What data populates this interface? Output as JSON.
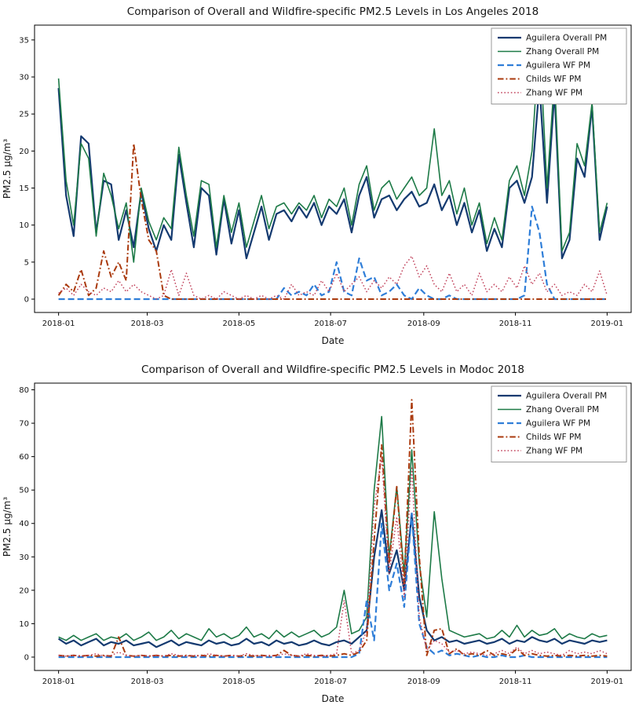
{
  "page": {
    "background": "#ffffff"
  },
  "chart_data": [
    {
      "type": "line",
      "title": "Comparison of Overall and Wildfire-specific PM2.5 Levels in Los Angeles 2018",
      "xlabel": "Date",
      "ylabel": "PM2.5 µg/m³",
      "ylim": [
        -1.8,
        37
      ],
      "yticks": [
        0,
        5,
        10,
        15,
        20,
        25,
        30,
        35
      ],
      "xlim_days": [
        -16,
        381
      ],
      "xticks": [
        {
          "label": "2018-01",
          "day": 0
        },
        {
          "label": "2018-03",
          "day": 59
        },
        {
          "label": "2018-05",
          "day": 120
        },
        {
          "label": "2018-07",
          "day": 181
        },
        {
          "label": "2018-09",
          "day": 243
        },
        {
          "label": "2018-11",
          "day": 304
        },
        {
          "label": "2019-01",
          "day": 365
        }
      ],
      "x_start_day": 0,
      "x_step_days": 5,
      "grid": false,
      "legend_position": "upper right",
      "series": [
        {
          "name": "Aguilera Overall PM",
          "color": "#143a70",
          "style": "solid",
          "width": 2.2,
          "values": [
            28.5,
            14,
            8.5,
            22,
            21,
            9,
            16,
            15.5,
            8,
            12,
            7,
            14.5,
            9.5,
            6.5,
            10,
            8,
            19.5,
            13,
            7,
            15,
            14,
            6,
            13.5,
            7.5,
            12,
            5.5,
            9,
            12.5,
            8,
            11.5,
            12,
            10.5,
            12.5,
            11,
            13,
            10,
            12.5,
            11.5,
            13.5,
            9,
            14,
            16.5,
            11,
            13.5,
            14,
            12,
            13.5,
            14.5,
            12.5,
            13,
            15.5,
            12,
            14,
            10,
            13,
            9,
            12,
            6.5,
            9.5,
            7,
            15,
            16,
            13,
            16.5,
            29,
            13,
            28,
            5.5,
            8,
            19,
            16.5,
            26,
            8,
            12.5
          ]
        },
        {
          "name": "Zhang Overall PM",
          "color": "#1d7a47",
          "style": "solid",
          "width": 1.6,
          "values": [
            29.8,
            16,
            10,
            21,
            19,
            8.5,
            17,
            14,
            9.5,
            13,
            5,
            15,
            10.5,
            8,
            11,
            9.5,
            20.5,
            14,
            8.5,
            16,
            15.5,
            7,
            14,
            9,
            13,
            7,
            10.5,
            14,
            9.5,
            12.5,
            13,
            11.5,
            13,
            12,
            14,
            11,
            13.5,
            12.5,
            15,
            10,
            15.5,
            18,
            12,
            15,
            16,
            13.5,
            15,
            16.5,
            14,
            15,
            23,
            14,
            16,
            11.5,
            15,
            10,
            13,
            7.5,
            11,
            8,
            16,
            18,
            14,
            20,
            35.5,
            15,
            30,
            6.5,
            9,
            21,
            18,
            26.5,
            9,
            13
          ]
        },
        {
          "name": "Aguilera WF PM",
          "color": "#2f7ed8",
          "style": "dashed",
          "width": 2.2,
          "values": [
            0,
            0,
            0,
            0,
            0,
            0,
            0,
            0,
            0,
            0,
            0,
            0,
            0,
            0,
            0,
            0,
            0,
            0,
            0,
            0,
            0,
            0,
            0,
            0,
            0,
            0,
            0,
            0,
            0,
            0,
            1.5,
            0.5,
            1,
            0.5,
            2,
            0.5,
            1,
            5,
            1,
            0.5,
            5.5,
            2.5,
            3,
            0.5,
            1,
            2,
            0.5,
            0,
            1.5,
            0.5,
            0,
            0,
            0.5,
            0,
            0,
            0,
            0,
            0,
            0,
            0,
            0,
            0,
            0.5,
            12.5,
            9,
            2,
            0,
            0,
            0,
            0,
            0,
            0,
            0,
            0
          ]
        },
        {
          "name": "Childs WF PM",
          "color": "#aa3a0e",
          "style": "dashdot",
          "width": 2,
          "values": [
            0.5,
            2,
            1,
            4,
            0.5,
            1.5,
            6.5,
            3,
            5,
            2.5,
            21,
            13.5,
            8,
            6.5,
            0.5,
            0,
            0,
            0,
            0,
            0,
            0,
            0,
            0,
            0,
            0,
            0,
            0,
            0,
            0,
            0,
            0,
            0,
            0,
            0,
            0,
            0,
            0,
            0,
            0,
            0,
            0,
            0,
            0,
            0,
            0,
            0,
            0,
            0,
            0,
            0,
            0,
            0,
            0,
            0,
            0,
            0,
            0,
            0,
            0,
            0,
            0,
            0,
            0,
            0,
            0,
            0,
            0,
            0,
            0,
            0,
            0,
            0,
            0,
            0
          ]
        },
        {
          "name": "Zhang WF PM",
          "color": "#c2455e",
          "style": "dotted",
          "width": 1.5,
          "values": [
            0.8,
            1.5,
            0.5,
            2,
            1,
            0.5,
            1.5,
            1,
            2.5,
            1,
            2,
            1,
            0.5,
            0,
            0.5,
            4,
            0.5,
            3.5,
            0.5,
            0,
            0.5,
            0,
            1,
            0.5,
            0,
            0.5,
            0,
            0.5,
            0,
            0.5,
            0,
            2,
            0.5,
            1,
            0.5,
            2.5,
            1,
            3.5,
            1,
            2,
            3,
            1,
            2.5,
            1.5,
            3,
            2,
            4.5,
            5.8,
            3,
            4.5,
            2,
            1,
            3.5,
            1,
            2,
            0.5,
            3.5,
            1,
            2,
            1,
            3,
            1.5,
            4.5,
            2,
            3.5,
            1,
            2,
            0.5,
            1,
            0.5,
            2,
            1,
            3.8,
            0.5
          ]
        }
      ]
    },
    {
      "type": "line",
      "title": "Comparison of Overall and Wildfire-specific PM2.5 Levels in Modoc 2018",
      "xlabel": "Date",
      "ylabel": "PM2.5 µg/m³",
      "ylim": [
        -4,
        82
      ],
      "yticks": [
        0,
        10,
        20,
        30,
        40,
        50,
        60,
        70,
        80
      ],
      "xlim_days": [
        -16,
        381
      ],
      "xticks": [
        {
          "label": "2018-01",
          "day": 0
        },
        {
          "label": "2018-03",
          "day": 59
        },
        {
          "label": "2018-05",
          "day": 120
        },
        {
          "label": "2018-07",
          "day": 181
        },
        {
          "label": "2018-09",
          "day": 243
        },
        {
          "label": "2018-11",
          "day": 304
        },
        {
          "label": "2019-01",
          "day": 365
        }
      ],
      "x_start_day": 0,
      "x_step_days": 5,
      "grid": false,
      "legend_position": "upper right",
      "series": [
        {
          "name": "Aguilera Overall PM",
          "color": "#143a70",
          "style": "solid",
          "width": 2.2,
          "values": [
            5.5,
            4,
            5,
            3.5,
            4.5,
            5.5,
            3.5,
            4.5,
            4,
            5,
            3.5,
            4,
            4.5,
            3,
            4,
            5,
            3.5,
            4.5,
            4,
            3.5,
            5,
            4,
            4.5,
            3.5,
            4,
            5.5,
            4,
            4.5,
            3.5,
            5,
            4,
            4.5,
            3.5,
            4,
            5,
            4,
            3.5,
            4.5,
            5,
            4,
            6,
            8,
            30,
            44,
            25,
            32,
            20,
            43,
            18,
            8,
            5,
            6,
            4.5,
            5,
            4,
            4.5,
            5,
            4,
            4.5,
            5.5,
            4,
            5,
            4.5,
            6,
            5,
            4.5,
            5.5,
            4,
            5,
            4.5,
            4,
            5,
            4.5,
            5
          ]
        },
        {
          "name": "Zhang Overall PM",
          "color": "#1d7a47",
          "style": "solid",
          "width": 1.6,
          "values": [
            6,
            5,
            6.5,
            5,
            6,
            7,
            5,
            6,
            5.5,
            7,
            5,
            6,
            7.5,
            5,
            6,
            8,
            5.5,
            7,
            6,
            5,
            8.5,
            6,
            7,
            5.5,
            6.5,
            9,
            6,
            7,
            5.5,
            8,
            6,
            7.5,
            6,
            7,
            8,
            6,
            7,
            9,
            20,
            7,
            8,
            12,
            50,
            72,
            30,
            51,
            25,
            62,
            28,
            12,
            43.5,
            23.5,
            8,
            7,
            6,
            6.5,
            7,
            5.5,
            6,
            8,
            6,
            9.5,
            6,
            8,
            6.5,
            7,
            8.5,
            5.5,
            7,
            6,
            5.5,
            7,
            6,
            6.5
          ]
        },
        {
          "name": "Aguilera WF PM",
          "color": "#2f7ed8",
          "style": "dashed",
          "width": 2.2,
          "values": [
            0,
            0,
            0,
            0,
            0,
            0,
            0,
            0,
            0,
            0,
            0,
            0,
            0,
            0,
            0,
            0,
            0,
            0,
            0,
            0,
            0,
            0,
            0,
            0,
            0,
            0,
            0,
            0,
            0,
            0,
            0,
            0,
            0,
            0,
            0,
            0,
            0,
            0,
            0,
            0,
            1,
            17,
            5,
            40,
            20,
            28,
            15,
            43,
            10,
            3,
            1,
            2,
            0.5,
            1,
            0.5,
            0,
            0.5,
            0,
            0,
            0.5,
            0,
            0,
            0.5,
            0,
            0,
            0,
            0,
            0,
            0,
            0,
            0,
            0,
            0,
            0
          ]
        },
        {
          "name": "Childs WF PM",
          "color": "#aa3a0e",
          "style": "dashdot",
          "width": 2,
          "values": [
            0.5,
            0.3,
            0.5,
            0.3,
            0.5,
            0.3,
            0.5,
            0.3,
            6,
            0.5,
            0.3,
            0.5,
            0.3,
            0.5,
            0.3,
            0.5,
            0.3,
            0.5,
            0.3,
            0.5,
            0.3,
            0.5,
            0.3,
            0.5,
            0.3,
            0.5,
            0.3,
            0.5,
            0.3,
            0.5,
            2,
            0.5,
            0.3,
            0.5,
            0.3,
            0.5,
            0.3,
            0.5,
            1,
            0.5,
            1.5,
            5,
            35,
            63.5,
            28,
            51,
            22,
            77,
            30,
            0.5,
            8,
            8.5,
            1,
            2.5,
            0.5,
            1,
            0.5,
            2,
            0.5,
            1,
            0.5,
            2.5,
            0.5,
            1,
            0.5,
            0.3,
            0.5,
            0.3,
            0.5,
            0.3,
            0.5,
            0.3,
            0.5,
            0.3
          ]
        },
        {
          "name": "Zhang WF PM",
          "color": "#c2455e",
          "style": "dotted",
          "width": 1.5,
          "values": [
            0.5,
            0.3,
            0.5,
            0.3,
            0.5,
            1,
            0.3,
            0.5,
            1.5,
            0.5,
            0.3,
            0.5,
            0.3,
            0.5,
            0.3,
            1,
            0.5,
            0.3,
            0.5,
            0.3,
            1,
            0.5,
            0.3,
            0.5,
            0.3,
            1,
            0.5,
            0.3,
            0.5,
            0.3,
            1,
            0.5,
            0.3,
            1,
            0.5,
            0.3,
            0.5,
            1,
            17,
            1,
            2,
            8,
            45,
            60,
            25,
            42,
            18,
            57,
            12,
            2,
            5,
            4,
            1.5,
            2,
            1,
            1.5,
            1,
            0.5,
            1,
            2,
            1,
            3,
            1,
            2,
            1,
            1.5,
            1,
            0.5,
            2,
            1,
            1.5,
            1,
            2,
            1
          ]
        }
      ]
    }
  ]
}
